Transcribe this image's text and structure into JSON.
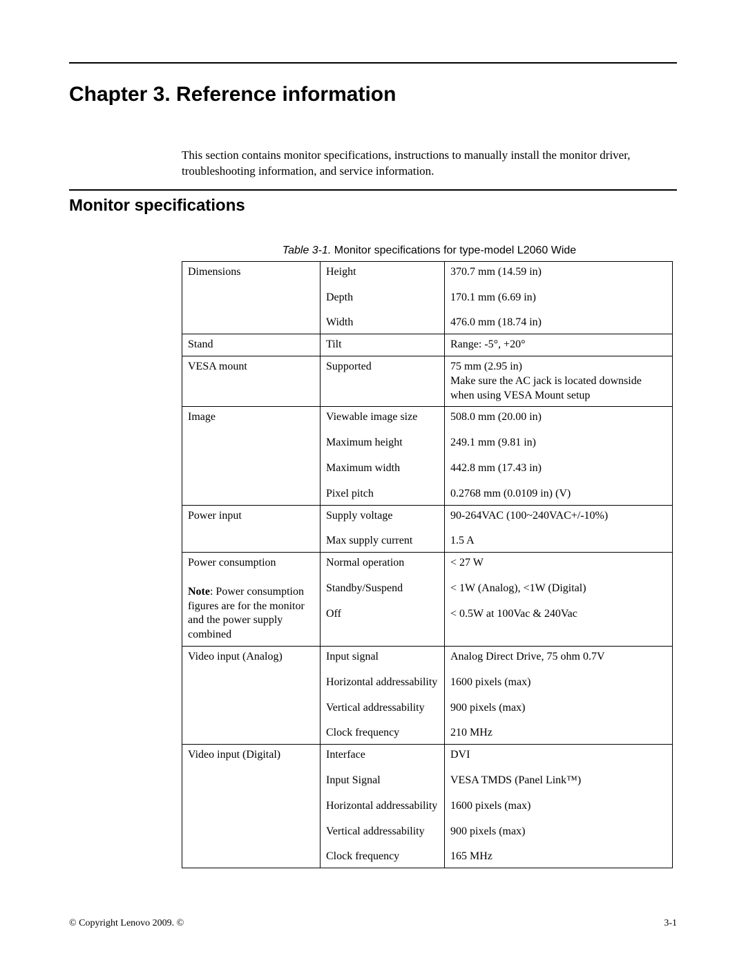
{
  "chapter_title": "Chapter 3. Reference information",
  "intro_text": "This section contains monitor specifications,  instructions to manually install the monitor driver, troubleshooting information, and service information.",
  "section_title": "Monitor specifications",
  "table_caption_label": "Table 3-1.",
  "table_caption_text": " Monitor specifications for type-model L2060 Wide",
  "table": {
    "rows": [
      {
        "c1": "Dimensions",
        "c2": [
          "Height",
          "Depth",
          "Width"
        ],
        "c3": [
          "370.7 mm (14.59 in)",
          "170.1 mm (6.69 in)",
          "476.0 mm (18.74 in)"
        ]
      },
      {
        "c1": "Stand",
        "c2": [
          "Tilt"
        ],
        "c3": [
          "Range:  -5°, +20°"
        ]
      },
      {
        "c1": "VESA mount",
        "c2": [
          "Supported"
        ],
        "c3": [
          "75 mm (2.95 in)\nMake sure the AC jack is located downside when using VESA Mount setup"
        ]
      },
      {
        "c1": "Image",
        "c2": [
          "Viewable image size",
          "Maximum height",
          "Maximum width",
          "Pixel pitch"
        ],
        "c3": [
          "508.0 mm (20.00 in)",
          "249.1 mm (9.81 in)",
          "442.8 mm (17.43 in)",
          "0.2768 mm (0.0109 in) (V)"
        ]
      },
      {
        "c1": "Power input",
        "c2": [
          "Supply voltage",
          "Max supply current"
        ],
        "c3": [
          "90-264VAC (100~240VAC+/-10%)",
          "1.5 A"
        ]
      },
      {
        "c1_parts": [
          {
            "text": "Power consumption",
            "bold": false,
            "gap_after": true
          },
          {
            "text": "Note",
            "bold": true
          },
          {
            "text": ":  Power consumption figures are for the monitor and the power supply combined",
            "bold": false
          }
        ],
        "c2": [
          "Normal operation",
          "Standby/Suspend",
          "Off"
        ],
        "c3": [
          "< 27 W",
          "< 1W (Analog), <1W (Digital)",
          "< 0.5W at 100Vac & 240Vac"
        ]
      },
      {
        "c1": "Video input (Analog)",
        "c2": [
          "Input signal",
          "Horizontal addressability",
          "Vertical addressability",
          "Clock frequency"
        ],
        "c3": [
          "Analog Direct Drive, 75 ohm 0.7V",
          "1600 pixels (max)",
          "900 pixels (max)",
          "210 MHz"
        ]
      },
      {
        "c1": "Video input (Digital)",
        "c2": [
          "Interface",
          "Input Signal",
          "Horizontal addressability",
          "Vertical addressability",
          "Clock frequency"
        ],
        "c3": [
          "DVI",
          "VESA TMDS (Panel Link™)",
          "1600 pixels (max)",
          "900 pixels (max)",
          "165 MHz"
        ]
      }
    ]
  },
  "footer_left": "© Copyright Lenovo 2009. ©",
  "footer_right": "3-1"
}
